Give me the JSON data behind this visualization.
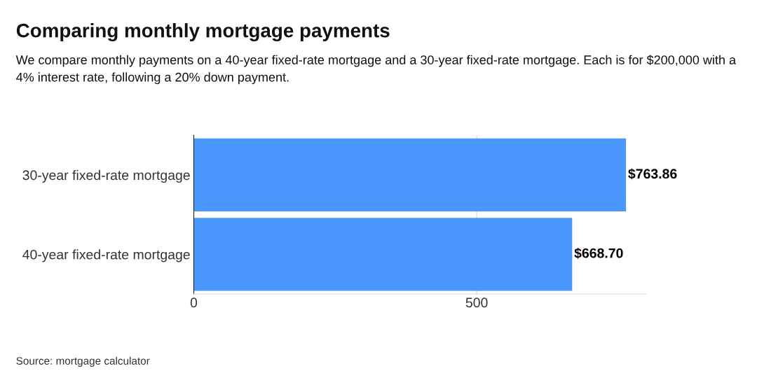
{
  "chart_data": {
    "type": "bar",
    "orientation": "horizontal",
    "title": "Comparing monthly mortgage payments",
    "subtitle": "We compare monthly payments on a 40-year fixed-rate mortgage and a 30-year fixed-rate mortgage. Each is for $200,000 with a 4% interest rate, following a 20% down payment.",
    "categories": [
      "30-year fixed-rate mortgage",
      "40-year fixed-rate mortgage"
    ],
    "values": [
      763.86,
      668.7
    ],
    "value_labels": [
      "$763.86",
      "$668.70"
    ],
    "color": "#4a98fd",
    "xlim": [
      0,
      800
    ],
    "xticks": [
      0,
      500
    ],
    "grid": "x",
    "annotations": [
      "Source: mortgage calculator"
    ]
  }
}
